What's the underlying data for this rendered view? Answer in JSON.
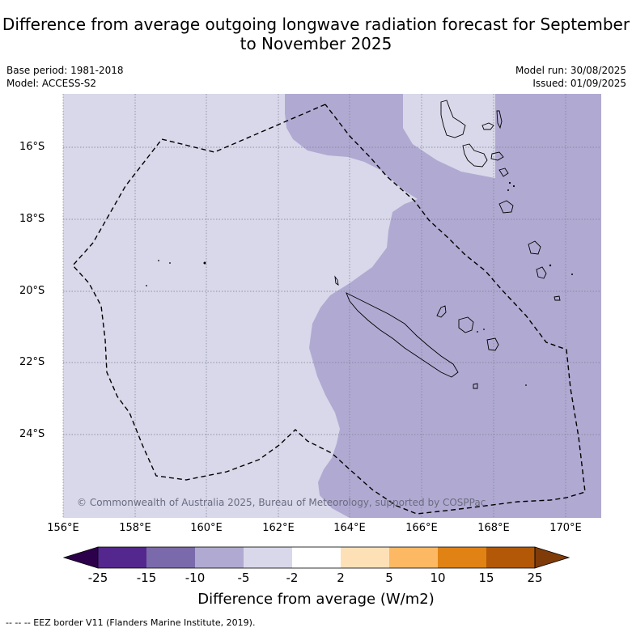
{
  "title": "Difference from average outgoing longwave radiation forecast for September to November 2025",
  "base_period": "Base period: 1981-2018",
  "model": "Model: ACCESS-S2",
  "model_run": "Model run: 30/08/2025",
  "issued": "Issued: 01/09/2025",
  "copyright": "© Commonwealth of Australia 2025, Bureau of Meteorology, supported by COSPPac",
  "footnote": "--  --  -- EEZ border V11 (Flanders Marine Institute, 2019).",
  "map": {
    "lon_range": [
      156,
      171
    ],
    "lat_range": [
      -26.0,
      -14.5
    ],
    "lat_ticks": [
      "16°S",
      "18°S",
      "20°S",
      "22°S",
      "24°S"
    ],
    "lon_ticks": [
      "156°E",
      "158°E",
      "160°E",
      "162°E",
      "164°E",
      "166°E",
      "168°E",
      "170°E"
    ]
  },
  "colorbar": {
    "label": "Difference from average (W/m2)",
    "ticks": [
      "-25",
      "-15",
      "-10",
      "-5",
      "-2",
      "2",
      "5",
      "10",
      "15",
      "25"
    ],
    "colors": [
      "#54278f",
      "#7b6aab",
      "#b0aad2",
      "#d8d8ea",
      "#ffffff",
      "#fee0b6",
      "#fdb863",
      "#e08214",
      "#b35806"
    ],
    "under_color": "#2d004b",
    "over_color": "#7f3b08"
  },
  "colors": {
    "category_neg5_neg2": "#d8d8ea",
    "category_neg10_neg5": "#b0aad2"
  }
}
